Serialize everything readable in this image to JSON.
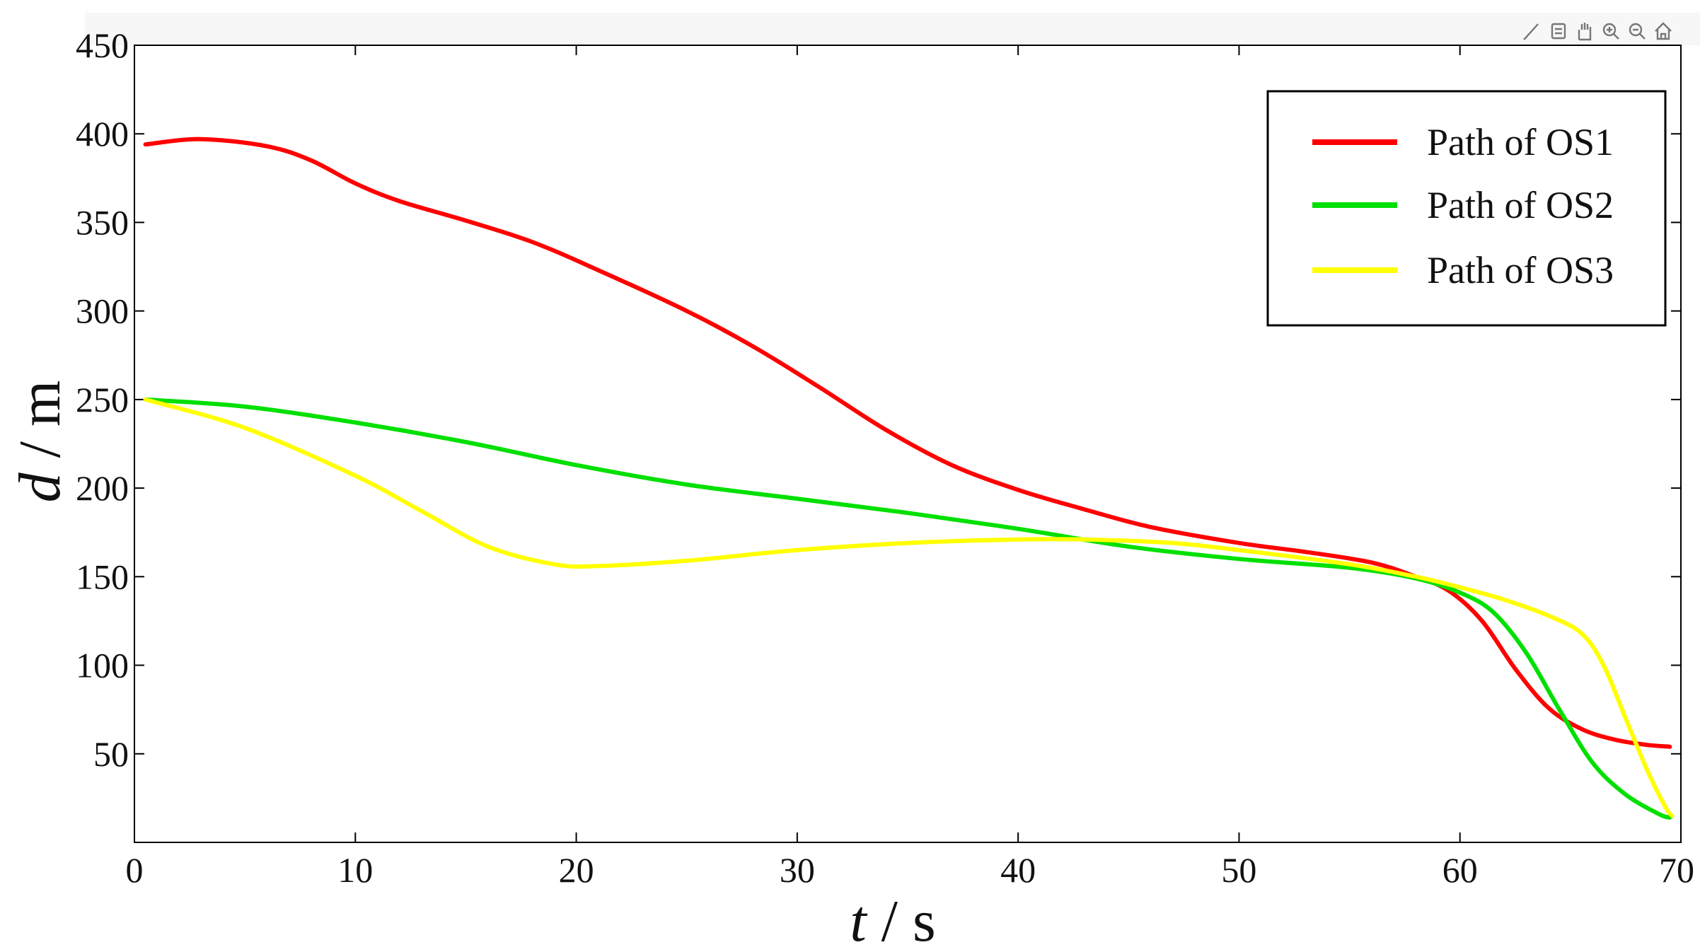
{
  "chart_data": {
    "type": "line",
    "xlabel_italic": "t",
    "xlabel_unit": " / s",
    "ylabel_italic": "d",
    "ylabel_unit": " / m",
    "xlim": [
      0,
      70
    ],
    "ylim": [
      0,
      450
    ],
    "x_ticks": [
      0,
      10,
      20,
      30,
      40,
      50,
      60,
      70
    ],
    "y_ticks": [
      50,
      100,
      150,
      200,
      250,
      300,
      350,
      400,
      450
    ],
    "grid": false,
    "legend_position": "top-right",
    "series": [
      {
        "name": "Path of OS1",
        "color": "#ff0000",
        "points": [
          [
            0.5,
            394
          ],
          [
            3,
            397
          ],
          [
            6,
            393
          ],
          [
            8,
            385
          ],
          [
            10,
            372
          ],
          [
            12,
            362
          ],
          [
            15,
            351
          ],
          [
            18,
            339
          ],
          [
            21,
            323
          ],
          [
            25,
            300
          ],
          [
            28,
            280
          ],
          [
            31,
            257
          ],
          [
            34,
            233
          ],
          [
            37,
            213
          ],
          [
            40,
            199
          ],
          [
            43,
            188
          ],
          [
            46,
            178
          ],
          [
            50,
            169
          ],
          [
            53,
            164
          ],
          [
            56,
            158
          ],
          [
            58,
            150
          ],
          [
            59.5,
            142
          ],
          [
            61,
            125
          ],
          [
            62.5,
            98
          ],
          [
            64,
            76
          ],
          [
            65.5,
            64
          ],
          [
            67,
            58
          ],
          [
            68.5,
            55
          ],
          [
            69.5,
            54
          ]
        ]
      },
      {
        "name": "Path of OS2",
        "color": "#00e000",
        "points": [
          [
            0.5,
            250
          ],
          [
            5,
            246
          ],
          [
            10,
            237
          ],
          [
            15,
            226
          ],
          [
            20,
            213
          ],
          [
            25,
            202
          ],
          [
            30,
            194
          ],
          [
            35,
            186
          ],
          [
            40,
            177
          ],
          [
            45,
            167
          ],
          [
            50,
            160
          ],
          [
            55,
            155
          ],
          [
            58,
            149
          ],
          [
            60,
            141
          ],
          [
            61.5,
            130
          ],
          [
            63,
            107
          ],
          [
            64.5,
            75
          ],
          [
            66,
            45
          ],
          [
            67.5,
            27
          ],
          [
            69,
            16
          ],
          [
            69.5,
            14
          ]
        ]
      },
      {
        "name": "Path of OS3",
        "color": "#ffff00",
        "points": [
          [
            0.5,
            250
          ],
          [
            5,
            234
          ],
          [
            10,
            207
          ],
          [
            13,
            187
          ],
          [
            16,
            167
          ],
          [
            19,
            157
          ],
          [
            21,
            156
          ],
          [
            25,
            159
          ],
          [
            30,
            165
          ],
          [
            35,
            169
          ],
          [
            40,
            171
          ],
          [
            43,
            171
          ],
          [
            47,
            169
          ],
          [
            50,
            165
          ],
          [
            55,
            157
          ],
          [
            58,
            150
          ],
          [
            60,
            144
          ],
          [
            62,
            137
          ],
          [
            64,
            128
          ],
          [
            65.5,
            118
          ],
          [
            66.5,
            100
          ],
          [
            67.5,
            70
          ],
          [
            68.5,
            40
          ],
          [
            69.3,
            20
          ],
          [
            69.6,
            15
          ]
        ]
      }
    ]
  }
}
